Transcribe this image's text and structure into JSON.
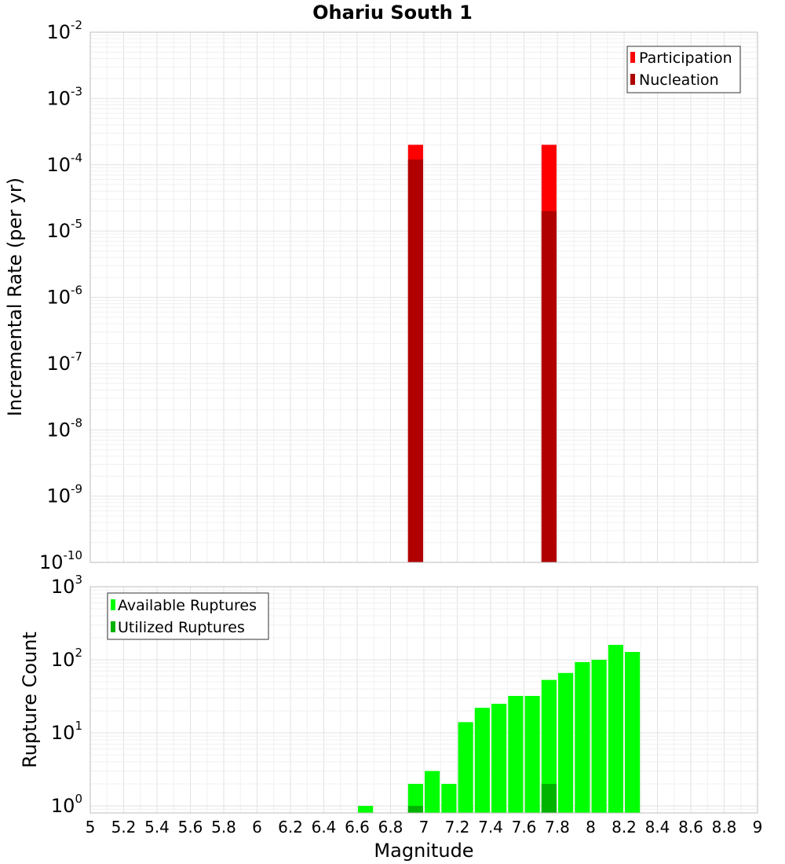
{
  "chart_data": [
    {
      "type": "bar",
      "title": "Ohariu South 1",
      "xlabel": "",
      "ylabel": "Incremental Rate (per yr)",
      "yscale": "log",
      "ylim": [
        1e-10,
        0.01
      ],
      "xlim": [
        5,
        9
      ],
      "bar_width": 0.09,
      "grid": true,
      "legend_position": "top-right",
      "y_ticks": [
        {
          "base": "10",
          "exp": "-10"
        },
        {
          "base": "10",
          "exp": "-9"
        },
        {
          "base": "10",
          "exp": "-8"
        },
        {
          "base": "10",
          "exp": "-7"
        },
        {
          "base": "10",
          "exp": "-6"
        },
        {
          "base": "10",
          "exp": "-5"
        },
        {
          "base": "10",
          "exp": "-4"
        },
        {
          "base": "10",
          "exp": "-3"
        },
        {
          "base": "10",
          "exp": "-2"
        }
      ],
      "series": [
        {
          "name": "Participation",
          "color": "#ff0000",
          "points": [
            {
              "x": 6.95,
              "y": 0.0002
            },
            {
              "x": 7.75,
              "y": 0.0002
            }
          ]
        },
        {
          "name": "Nucleation",
          "color": "#b00000",
          "points": [
            {
              "x": 6.95,
              "y": 0.00012
            },
            {
              "x": 7.75,
              "y": 2e-05
            }
          ]
        }
      ]
    },
    {
      "type": "bar",
      "title": "",
      "xlabel": "Magnitude",
      "ylabel": "Rupture Count",
      "yscale": "log",
      "ylim": [
        0.8,
        1000
      ],
      "xlim": [
        5,
        9
      ],
      "bar_width": 0.09,
      "grid": true,
      "legend_position": "top-left",
      "x_ticks": [
        "5",
        "5.2",
        "5.4",
        "5.6",
        "5.8",
        "6",
        "6.2",
        "6.4",
        "6.6",
        "6.8",
        "7",
        "7.2",
        "7.4",
        "7.6",
        "7.8",
        "8",
        "8.2",
        "8.4",
        "8.6",
        "8.8",
        "9"
      ],
      "y_ticks": [
        {
          "base": "10",
          "exp": "0"
        },
        {
          "base": "10",
          "exp": "1"
        },
        {
          "base": "10",
          "exp": "2"
        },
        {
          "base": "10",
          "exp": "3"
        }
      ],
      "series": [
        {
          "name": "Available Ruptures",
          "color": "#00ff00",
          "points": [
            {
              "x": 6.65,
              "y": 1
            },
            {
              "x": 6.95,
              "y": 2
            },
            {
              "x": 7.05,
              "y": 3
            },
            {
              "x": 7.15,
              "y": 2
            },
            {
              "x": 7.25,
              "y": 14
            },
            {
              "x": 7.35,
              "y": 22
            },
            {
              "x": 7.45,
              "y": 25
            },
            {
              "x": 7.55,
              "y": 32
            },
            {
              "x": 7.65,
              "y": 32
            },
            {
              "x": 7.75,
              "y": 53
            },
            {
              "x": 7.85,
              "y": 66
            },
            {
              "x": 7.95,
              "y": 93
            },
            {
              "x": 8.05,
              "y": 100
            },
            {
              "x": 8.15,
              "y": 160
            },
            {
              "x": 8.25,
              "y": 128
            }
          ]
        },
        {
          "name": "Utilized Ruptures",
          "color": "#00b300",
          "points": [
            {
              "x": 6.95,
              "y": 1
            },
            {
              "x": 7.75,
              "y": 2
            }
          ]
        }
      ]
    }
  ]
}
